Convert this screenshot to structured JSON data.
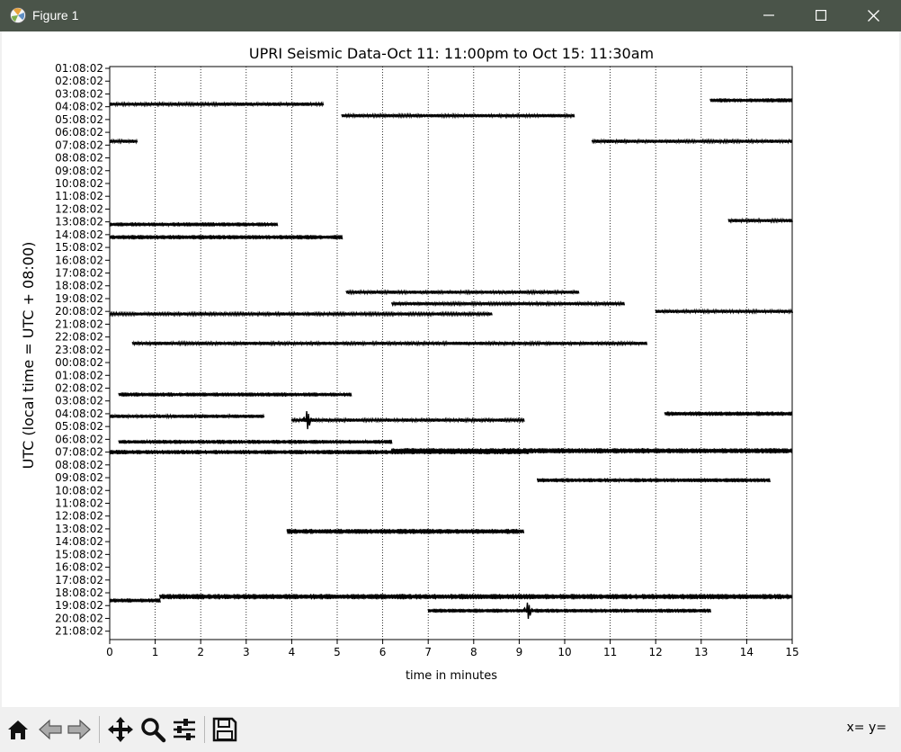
{
  "window": {
    "title": "Figure 1",
    "coords_readout": "x= y="
  },
  "icons": {
    "app": "matplotlib-icon",
    "minimize": "minimize-icon",
    "maximize": "maximize-icon",
    "close": "close-icon",
    "home": "home-icon",
    "back": "back-arrow-icon",
    "forward": "forward-arrow-icon",
    "pan": "pan-icon",
    "zoom": "zoom-icon",
    "configure": "configure-subplots-icon",
    "save": "save-icon"
  },
  "chart_data": {
    "type": "line",
    "title": "UPRI Seismic Data-Oct 11: 11:00pm to Oct 15: 11:30am",
    "xlabel": "time in minutes",
    "ylabel": "UTC (local time = UTC + 08:00)",
    "xlim": [
      0,
      15
    ],
    "x_ticks": [
      "0",
      "1",
      "2",
      "3",
      "4",
      "5",
      "6",
      "7",
      "8",
      "9",
      "10",
      "11",
      "12",
      "13",
      "14",
      "15"
    ],
    "y_ticks": [
      "01:08:02",
      "02:08:02",
      "03:08:02",
      "04:08:02",
      "05:08:02",
      "06:08:02",
      "07:08:02",
      "08:08:02",
      "09:08:02",
      "10:08:02",
      "11:08:02",
      "12:08:02",
      "13:08:02",
      "14:08:02",
      "15:08:02",
      "16:08:02",
      "17:08:02",
      "18:08:02",
      "19:08:02",
      "20:08:02",
      "21:08:02",
      "22:08:02",
      "23:08:02",
      "00:08:02",
      "01:08:02",
      "02:08:02",
      "03:08:02",
      "04:08:02",
      "05:08:02",
      "06:08:02",
      "07:08:02",
      "08:08:02",
      "09:08:02",
      "10:08:02",
      "11:08:02",
      "12:08:02",
      "13:08:02",
      "14:08:02",
      "15:08:02",
      "16:08:02",
      "17:08:02",
      "18:08:02",
      "19:08:02",
      "20:08:02",
      "21:08:02"
    ],
    "grid": "vertical dotted",
    "line_color": "#000000",
    "traces": [
      {
        "row": 2.8,
        "x": [
          0.0,
          4.7
        ],
        "amp": 1.0
      },
      {
        "row": 2.5,
        "x": [
          13.2,
          15.0
        ],
        "amp": 1.2
      },
      {
        "row": 3.7,
        "x": [
          5.1,
          10.2
        ],
        "amp": 1.0
      },
      {
        "row": 5.7,
        "x": [
          0.0,
          0.6
        ],
        "amp": 1.0
      },
      {
        "row": 5.7,
        "x": [
          10.6,
          15.0
        ],
        "amp": 1.0
      },
      {
        "row": 12.2,
        "x": [
          0.0,
          3.7
        ],
        "amp": 1.2
      },
      {
        "row": 11.9,
        "x": [
          13.6,
          15.0
        ],
        "amp": 1.0
      },
      {
        "row": 13.2,
        "x": [
          0.0,
          5.1
        ],
        "amp": 1.3
      },
      {
        "row": 17.5,
        "x": [
          5.2,
          10.3
        ],
        "amp": 1.0
      },
      {
        "row": 18.4,
        "x": [
          6.2,
          11.3
        ],
        "amp": 1.0
      },
      {
        "row": 19.2,
        "x": [
          0.0,
          8.4
        ],
        "amp": 0.9
      },
      {
        "row": 19.0,
        "x": [
          12.0,
          15.0
        ],
        "amp": 1.0
      },
      {
        "row": 21.5,
        "x": [
          0.5,
          11.8
        ],
        "amp": 1.0
      },
      {
        "row": 25.5,
        "x": [
          0.2,
          5.3
        ],
        "amp": 1.2
      },
      {
        "row": 27.2,
        "x": [
          0.0,
          3.4
        ],
        "amp": 1.1
      },
      {
        "row": 27.5,
        "x": [
          4.0,
          9.1
        ],
        "amp": 1.0
      },
      {
        "row": 27.0,
        "x": [
          12.2,
          15.0
        ],
        "amp": 1.3
      },
      {
        "row": 29.2,
        "x": [
          0.2,
          6.2
        ],
        "amp": 1.2
      },
      {
        "row": 29.9,
        "x": [
          6.2,
          15.0
        ],
        "amp": 1.6
      },
      {
        "row": 30.0,
        "x": [
          0.0,
          9.2
        ],
        "amp": 1.3
      },
      {
        "row": 32.2,
        "x": [
          9.4,
          14.5
        ],
        "amp": 1.2
      },
      {
        "row": 36.2,
        "x": [
          3.9,
          9.1
        ],
        "amp": 1.5
      },
      {
        "row": 41.3,
        "x": [
          1.1,
          15.0
        ],
        "amp": 1.6
      },
      {
        "row": 41.6,
        "x": [
          0.0,
          1.1
        ],
        "amp": 1.2
      },
      {
        "row": 42.4,
        "x": [
          7.0,
          13.2
        ],
        "amp": 1.2
      }
    ],
    "spikes": [
      {
        "row": 27.5,
        "x": 4.35,
        "amp": 10
      },
      {
        "row": 42.4,
        "x": 9.2,
        "amp": 9
      }
    ]
  }
}
